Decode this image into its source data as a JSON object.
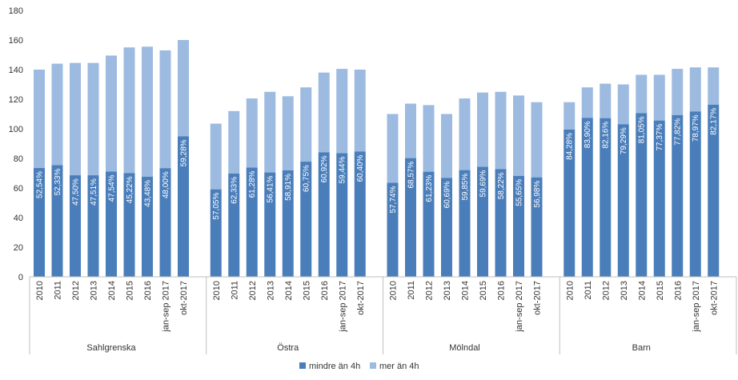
{
  "chart_data": {
    "type": "bar",
    "stacked": true,
    "ylim": [
      0,
      180
    ],
    "yticks": [
      0,
      20,
      40,
      60,
      80,
      100,
      120,
      140,
      160,
      180
    ],
    "legend_position": "bottom",
    "colors": {
      "mindre": "#4a7ebb",
      "mer": "#9dbbe0"
    },
    "legend": [
      "mindre än 4h",
      "mer än 4h"
    ],
    "categories": [
      "2010",
      "2011",
      "2012",
      "2013",
      "2014",
      "2015",
      "2016",
      "jan-sep 2017",
      "okt-2017"
    ],
    "groups": [
      {
        "name": "Sahlgrenska",
        "totals": [
          140,
          144,
          144.5,
          144.5,
          149.5,
          155,
          155.5,
          153,
          160
        ],
        "mindre": [
          73.5,
          75.4,
          68.6,
          68.6,
          71.1,
          70.1,
          67.6,
          73.4,
          94.9
        ],
        "labels": [
          "52,54%",
          "52,33%",
          "47,50%",
          "47,51%",
          "47,54%",
          "45,22%",
          "43,48%",
          "48,00%",
          "59,28%"
        ]
      },
      {
        "name": "Östra",
        "totals": [
          103.5,
          112,
          120.5,
          125,
          122,
          128,
          138,
          140.5,
          140
        ],
        "mindre": [
          59.1,
          69.8,
          73.8,
          70.5,
          71.9,
          77.8,
          84.1,
          83.5,
          84.6
        ],
        "labels": [
          "57,05%",
          "62,33%",
          "61,28%",
          "56,41%",
          "58,91%",
          "60,75%",
          "60,92%",
          "59,44%",
          "60,40%"
        ]
      },
      {
        "name": "Mölndal",
        "totals": [
          110,
          117,
          116,
          110,
          120.5,
          124.5,
          125,
          122.5,
          118
        ],
        "mindre": [
          63.5,
          80.2,
          71.0,
          66.8,
          72.1,
          74.3,
          72.8,
          68.2,
          67.2
        ],
        "labels": [
          "57,74%",
          "68,57%",
          "61,23%",
          "60,69%",
          "59,85%",
          "59,69%",
          "58,22%",
          "55,65%",
          "56,98%"
        ]
      },
      {
        "name": "Barn",
        "totals": [
          118,
          128,
          130.5,
          130,
          136.5,
          136.5,
          140.5,
          141.5,
          141.5
        ],
        "mindre": [
          99.5,
          107.4,
          107.2,
          103.1,
          110.6,
          105.6,
          109.3,
          111.7,
          116.3
        ],
        "labels": [
          "84,28%",
          "83,90%",
          "82,16%",
          "79,29%",
          "81,05%",
          "77,37%",
          "77,82%",
          "78,97%",
          "82,17%"
        ]
      }
    ]
  }
}
